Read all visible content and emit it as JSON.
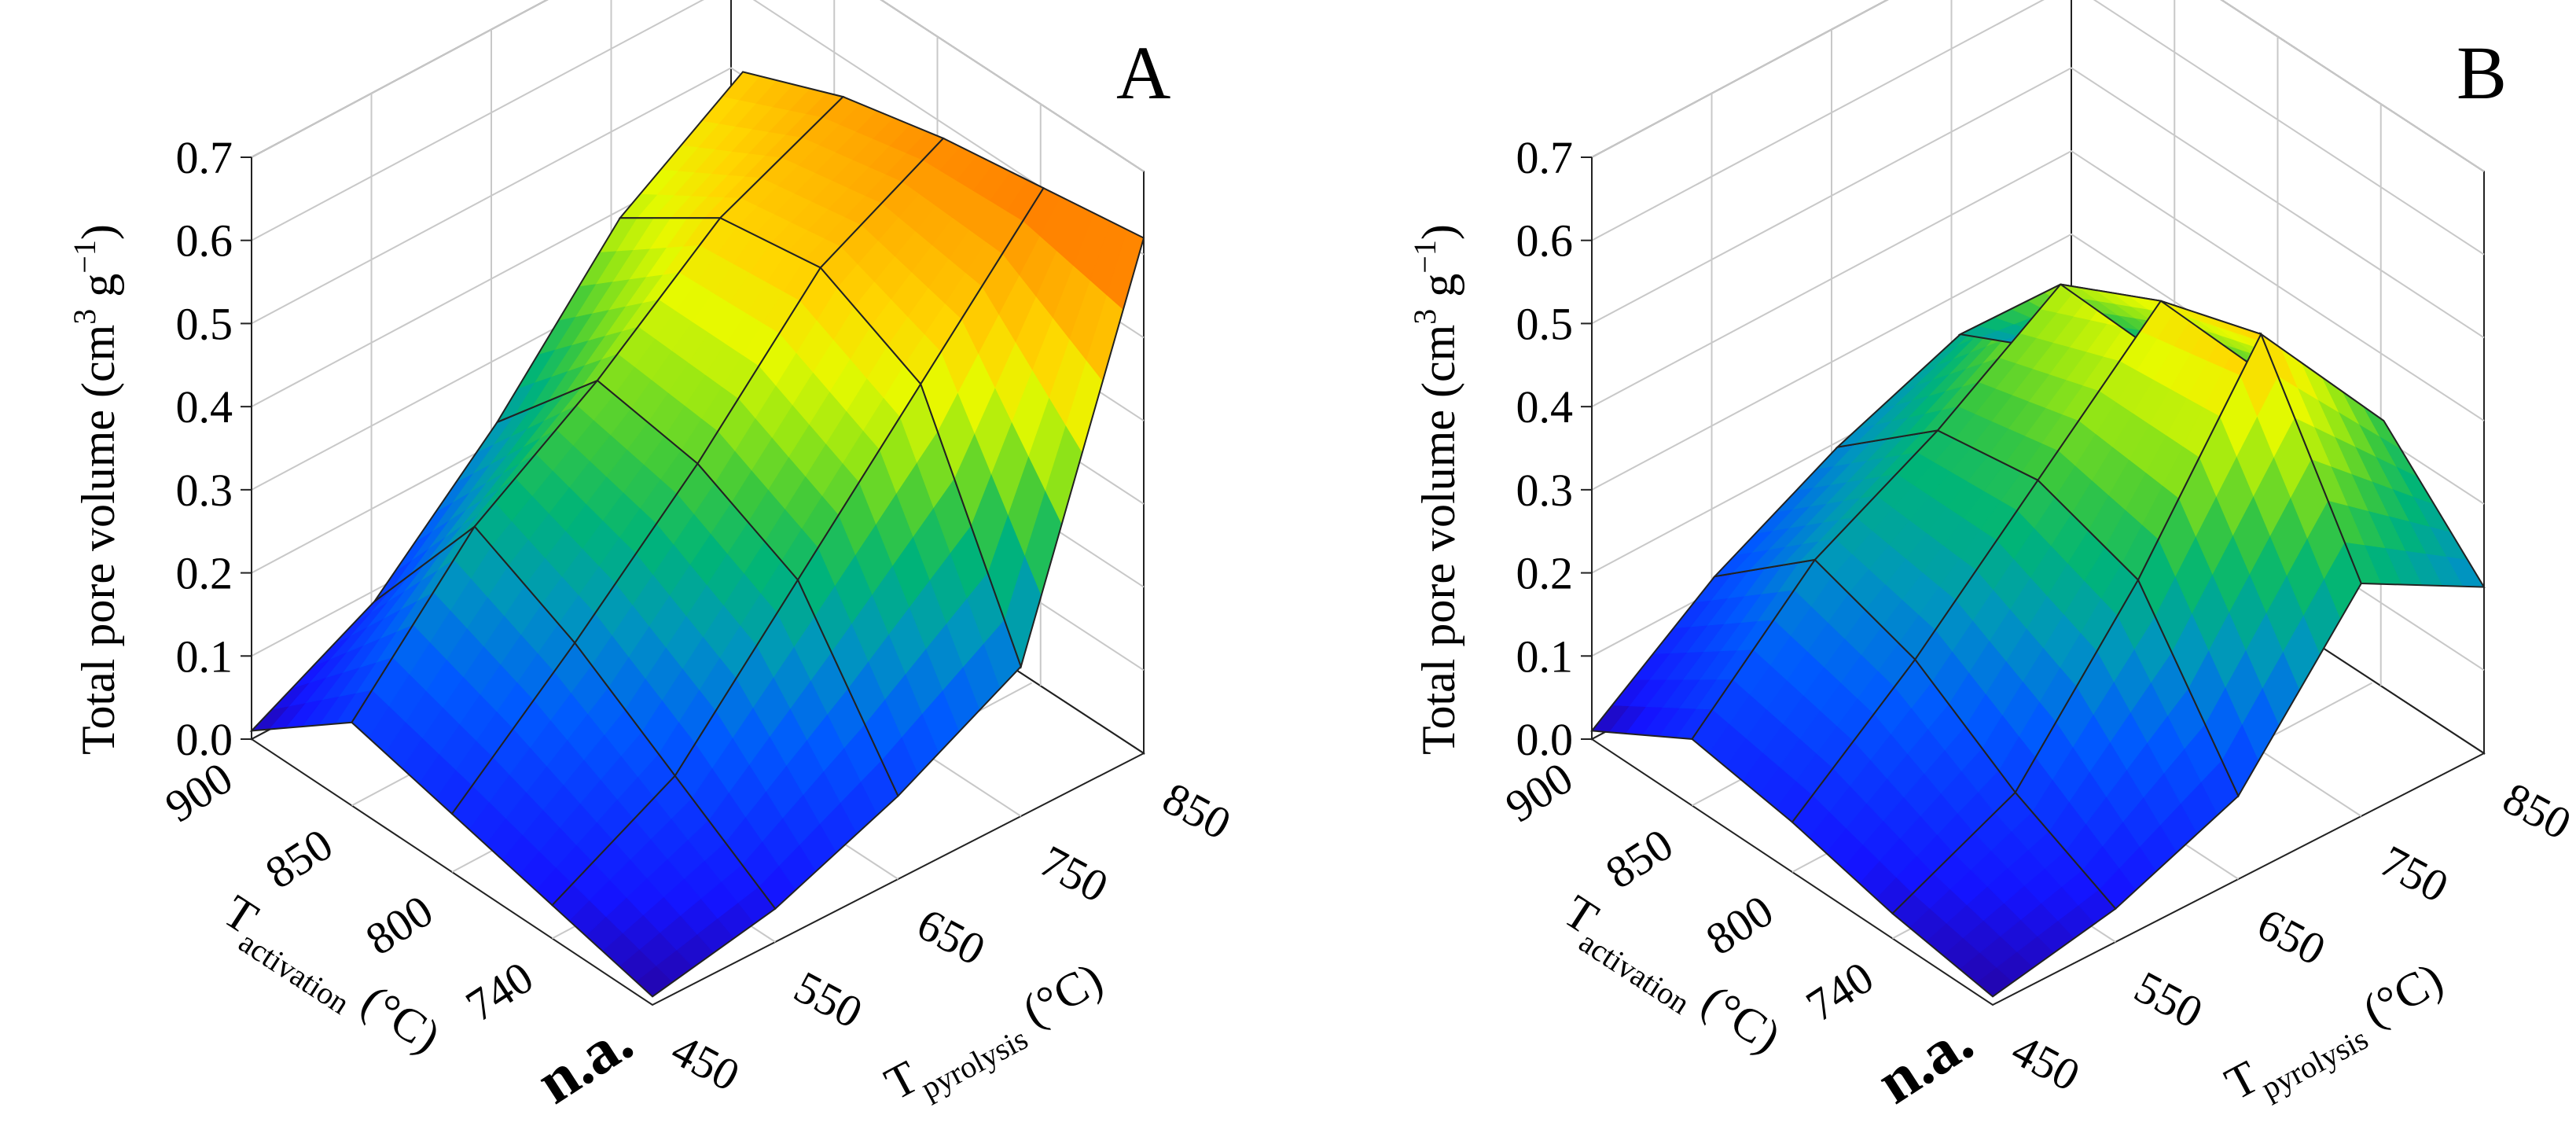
{
  "chart_data": [
    {
      "type": "surface3d",
      "panel_label": "A",
      "zlabel": {
        "main": "Total pore volume (cm",
        "sup1": "3",
        "mid": " g",
        "sup2": "−1",
        "end": ")"
      },
      "xlabel": {
        "main": "T",
        "sub": "pyrolysis",
        "unit": " (°C)"
      },
      "ylabel": {
        "main": "T",
        "sub": "activation",
        "unit": " (°C)"
      },
      "x_ticks": [
        "450",
        "550",
        "650",
        "750",
        "850"
      ],
      "y_ticks": [
        "n.a.",
        "740",
        "800",
        "850",
        "900"
      ],
      "z_ticks": [
        "0.0",
        "0.1",
        "0.2",
        "0.3",
        "0.4",
        "0.5",
        "0.6",
        "0.7"
      ],
      "zlim": [
        0,
        0.7
      ],
      "x_values": [
        450,
        550,
        650,
        750,
        850
      ],
      "y_values": [
        "n.a.",
        "740",
        "800",
        "850",
        "900"
      ],
      "z_values": [
        [
          0.01,
          0.04,
          0.1,
          0.18,
          0.62
        ],
        [
          0.04,
          0.12,
          0.28,
          0.44,
          0.6
        ],
        [
          0.07,
          0.2,
          0.34,
          0.5,
          0.58
        ],
        [
          0.1,
          0.26,
          0.36,
          0.48,
          0.55
        ],
        [
          0.01,
          0.09,
          0.23,
          0.4,
          0.5
        ]
      ]
    },
    {
      "type": "surface3d",
      "panel_label": "B",
      "zlabel": {
        "main": "Total pore volume (cm",
        "sup1": "3",
        "mid": " g",
        "sup2": "−1",
        "end": ")"
      },
      "xlabel": {
        "main": "T",
        "sub": "pyrolysis",
        "unit": " (°C)"
      },
      "ylabel": {
        "main": "T",
        "sub": "activation",
        "unit": " (°C)"
      },
      "x_ticks": [
        "450",
        "550",
        "650",
        "750",
        "850"
      ],
      "y_ticks": [
        "n.a.",
        "740",
        "800",
        "850",
        "900"
      ],
      "z_ticks": [
        "0.0",
        "0.1",
        "0.2",
        "0.3",
        "0.4",
        "0.5",
        "0.6",
        "0.7"
      ],
      "zlim": [
        0,
        0.7
      ],
      "x_values": [
        450,
        550,
        650,
        750,
        850
      ],
      "y_values": [
        "n.a.",
        "740",
        "800",
        "850",
        "900"
      ],
      "z_values": [
        [
          0.01,
          0.04,
          0.1,
          0.28,
          0.2
        ],
        [
          0.03,
          0.1,
          0.28,
          0.5,
          0.32
        ],
        [
          0.06,
          0.18,
          0.32,
          0.46,
          0.28
        ],
        [
          0.08,
          0.22,
          0.3,
          0.4,
          0.22
        ],
        [
          0.01,
          0.12,
          0.2,
          0.26,
          0.16
        ]
      ]
    }
  ]
}
